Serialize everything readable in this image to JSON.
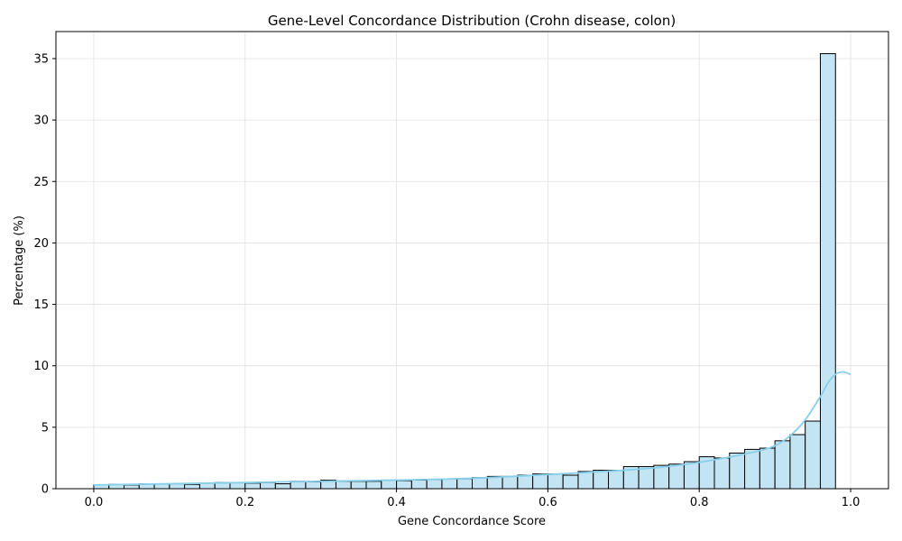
{
  "chart_data": {
    "type": "bar",
    "title": "Gene-Level Concordance Distribution (Crohn disease, colon)",
    "xlabel": "Gene Concordance Score",
    "ylabel": "Percentage (%)",
    "xlim": [
      -0.05,
      1.05
    ],
    "ylim": [
      0,
      37.2
    ],
    "xticks": [
      0.0,
      0.2,
      0.4,
      0.6,
      0.8,
      1.0
    ],
    "xtick_labels": [
      "0.0",
      "0.2",
      "0.4",
      "0.6",
      "0.8",
      "1.0"
    ],
    "yticks": [
      0,
      5,
      10,
      15,
      20,
      25,
      30,
      35
    ],
    "ytick_labels": [
      "0",
      "5",
      "10",
      "15",
      "20",
      "25",
      "30",
      "35"
    ],
    "grid": true,
    "bins": {
      "start": 0.0,
      "width": 0.02,
      "values": [
        0.3,
        0.35,
        0.3,
        0.4,
        0.4,
        0.4,
        0.35,
        0.45,
        0.5,
        0.5,
        0.45,
        0.5,
        0.4,
        0.6,
        0.55,
        0.7,
        0.6,
        0.6,
        0.6,
        0.7,
        0.65,
        0.7,
        0.75,
        0.8,
        0.8,
        0.9,
        1.0,
        1.0,
        1.1,
        1.2,
        1.2,
        1.1,
        1.4,
        1.5,
        1.5,
        1.8,
        1.8,
        1.9,
        2.0,
        2.2,
        2.6,
        2.5,
        2.9,
        3.2,
        3.3,
        3.9,
        4.4,
        5.5,
        35.4
      ]
    },
    "kde": {
      "x": [
        0.0,
        0.1,
        0.2,
        0.3,
        0.4,
        0.5,
        0.6,
        0.7,
        0.75,
        0.8,
        0.85,
        0.88,
        0.9,
        0.92,
        0.94,
        0.96,
        0.97,
        0.98,
        0.99,
        1.0
      ],
      "y": [
        0.3,
        0.4,
        0.5,
        0.6,
        0.7,
        0.85,
        1.15,
        1.5,
        1.75,
        2.15,
        2.7,
        3.1,
        3.5,
        4.3,
        5.6,
        7.5,
        8.6,
        9.3,
        9.5,
        9.3
      ]
    },
    "colors": {
      "bar_fill": "#c3e4f3",
      "bar_edge": "#000000",
      "kde_line": "#87ceeb",
      "grid": "#e0e0e0"
    }
  }
}
